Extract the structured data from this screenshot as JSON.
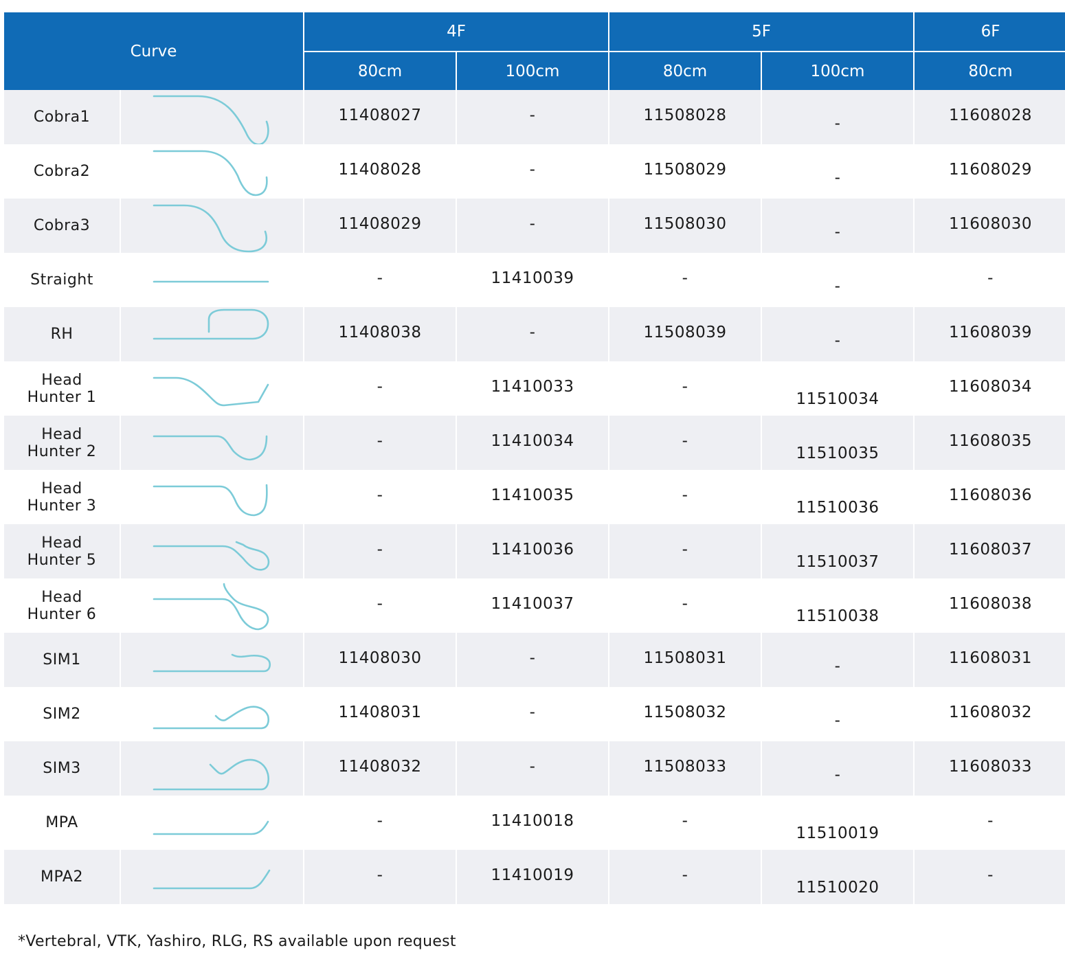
{
  "header": {
    "curve_label": "Curve",
    "groups": [
      "4F",
      "5F",
      "6F"
    ],
    "lengths": [
      "80cm",
      "100cm",
      "80cm",
      "100cm",
      "80cm"
    ]
  },
  "rows": [
    {
      "name": "Cobra1",
      "icon": "cobra1-curve-icon",
      "f4_80": "11408027",
      "f4_100": "-",
      "f5_80": "11508028",
      "f5_100": "-",
      "f6_80": "11608028"
    },
    {
      "name": "Cobra2",
      "icon": "cobra2-curve-icon",
      "f4_80": "11408028",
      "f4_100": "-",
      "f5_80": "11508029",
      "f5_100": "-",
      "f6_80": "11608029"
    },
    {
      "name": "Cobra3",
      "icon": "cobra3-curve-icon",
      "f4_80": "11408029",
      "f4_100": "-",
      "f5_80": "11508030",
      "f5_100": "-",
      "f6_80": "11608030"
    },
    {
      "name": "Straight",
      "icon": "straight-curve-icon",
      "f4_80": "-",
      "f4_100": "11410039",
      "f5_80": "-",
      "f5_100": "-",
      "f6_80": "-"
    },
    {
      "name": "RH",
      "icon": "rh-curve-icon",
      "f4_80": "11408038",
      "f4_100": "-",
      "f5_80": "11508039",
      "f5_100": "-",
      "f6_80": "11608039"
    },
    {
      "name": "Head Hunter 1",
      "icon": "head-hunter-1-curve-icon",
      "f4_80": "-",
      "f4_100": "11410033",
      "f5_80": "-",
      "f5_100": "11510034",
      "f6_80": "11608034"
    },
    {
      "name": "Head Hunter 2",
      "icon": "head-hunter-2-curve-icon",
      "f4_80": "-",
      "f4_100": "11410034",
      "f5_80": "-",
      "f5_100": "11510035",
      "f6_80": "11608035"
    },
    {
      "name": "Head Hunter 3",
      "icon": "head-hunter-3-curve-icon",
      "f4_80": "-",
      "f4_100": "11410035",
      "f5_80": "-",
      "f5_100": "11510036",
      "f6_80": "11608036"
    },
    {
      "name": "Head Hunter 5",
      "icon": "head-hunter-5-curve-icon",
      "f4_80": "-",
      "f4_100": "11410036",
      "f5_80": "-",
      "f5_100": "11510037",
      "f6_80": "11608037"
    },
    {
      "name": "Head Hunter 6",
      "icon": "head-hunter-6-curve-icon",
      "f4_80": "-",
      "f4_100": "11410037",
      "f5_80": "-",
      "f5_100": "11510038",
      "f6_80": "11608038"
    },
    {
      "name": "SIM1",
      "icon": "sim1-curve-icon",
      "f4_80": "11408030",
      "f4_100": "-",
      "f5_80": "11508031",
      "f5_100": "-",
      "f6_80": "11608031"
    },
    {
      "name": "SIM2",
      "icon": "sim2-curve-icon",
      "f4_80": "11408031",
      "f4_100": "-",
      "f5_80": "11508032",
      "f5_100": "-",
      "f6_80": "11608032"
    },
    {
      "name": "SIM3",
      "icon": "sim3-curve-icon",
      "f4_80": "11408032",
      "f4_100": "-",
      "f5_80": "11508033",
      "f5_100": "-",
      "f6_80": "11608033"
    },
    {
      "name": "MPA",
      "icon": "mpa-curve-icon",
      "f4_80": "-",
      "f4_100": "11410018",
      "f5_80": "-",
      "f5_100": "11510019",
      "f6_80": "-"
    },
    {
      "name": "MPA2",
      "icon": "mpa2-curve-icon",
      "f4_80": "-",
      "f4_100": "11410019",
      "f5_80": "-",
      "f5_100": "11510020",
      "f6_80": "-"
    }
  ],
  "footnote": "*Vertebral, VTK, Yashiro, RLG, RS available upon request",
  "colors": {
    "header_bg": "#106bb6",
    "row_shade": "#eeeff3",
    "curve_stroke": "#7ccbd8"
  }
}
